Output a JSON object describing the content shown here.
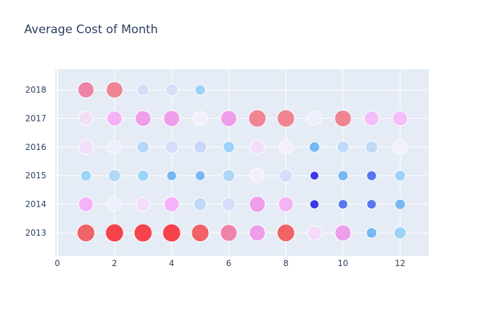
{
  "chart_data": {
    "type": "scatter",
    "title": "Average Cost of Month",
    "xlabel": "",
    "ylabel": "",
    "xlim": [
      0,
      13
    ],
    "x_ticks": [
      0,
      2,
      4,
      6,
      8,
      10,
      12
    ],
    "y_categories": [
      "2013",
      "2014",
      "2015",
      "2016",
      "2017",
      "2018"
    ],
    "grid": true,
    "legend": "none",
    "series": [
      {
        "name": "2013",
        "x": [
          1,
          2,
          3,
          4,
          5,
          6,
          7,
          8,
          9,
          10,
          11,
          12
        ],
        "values": [
          95,
          100,
          100,
          100,
          92,
          82,
          72,
          92,
          50,
          72,
          18,
          30
        ],
        "colors": [
          "#f14b4e",
          "#f8262e",
          "#f8262e",
          "#f8262e",
          "#f14b4e",
          "#ef7199",
          "#f08fe7",
          "#f14b4e",
          "#f6d7f9",
          "#f08fe7",
          "#62aff2",
          "#8dcff8"
        ]
      },
      {
        "name": "2014",
        "x": [
          1,
          2,
          3,
          4,
          5,
          6,
          7,
          8,
          9,
          10,
          11,
          12
        ],
        "values": [
          55,
          45,
          48,
          60,
          35,
          40,
          70,
          58,
          10,
          12,
          12,
          18
        ],
        "colors": [
          "#f6a8f7",
          "#eceffb",
          "#f3dcf8",
          "#f6a8f7",
          "#b9d7f7",
          "#d5d9f9",
          "#f08fe7",
          "#f6a8f7",
          "#1b1ae6",
          "#3d61ea",
          "#3d61ea",
          "#62aff2"
        ]
      },
      {
        "name": "2015",
        "x": [
          1,
          2,
          3,
          4,
          5,
          6,
          7,
          8,
          9,
          10,
          11,
          12
        ],
        "values": [
          20,
          30,
          22,
          14,
          14,
          30,
          48,
          38,
          8,
          16,
          14,
          20
        ],
        "colors": [
          "#8dcff8",
          "#a7d4f6",
          "#8dcff8",
          "#62aff2",
          "#62aff2",
          "#a7d4f6",
          "#f6eff9",
          "#d5d9f9",
          "#1b1ae6",
          "#62aff2",
          "#3d61ea",
          "#8dcff8"
        ]
      },
      {
        "name": "2016",
        "x": [
          1,
          2,
          3,
          4,
          5,
          6,
          7,
          8,
          9,
          10,
          11,
          12
        ],
        "values": [
          52,
          45,
          28,
          38,
          35,
          25,
          52,
          45,
          18,
          30,
          32,
          50
        ],
        "colors": [
          "#f3dcf8",
          "#eceffb",
          "#a7d4f6",
          "#d5d9f9",
          "#c5d2f9",
          "#8dcff8",
          "#f3dcf8",
          "#f6eff9",
          "#62aff2",
          "#b9d7f7",
          "#b9d7f7",
          "#f6eff9"
        ]
      },
      {
        "name": "2017",
        "x": [
          1,
          2,
          3,
          4,
          5,
          6,
          7,
          8,
          9,
          10,
          11,
          12
        ],
        "values": [
          50,
          60,
          68,
          72,
          48,
          72,
          90,
          90,
          45,
          80,
          55,
          58
        ],
        "colors": [
          "#f3dcf8",
          "#f6a8f7",
          "#f08fe7",
          "#f08fe7",
          "#f6eff9",
          "#f08fe7",
          "#f17280",
          "#f17280",
          "#eceffb",
          "#f17280",
          "#f6b6f9",
          "#f6b6f9"
        ]
      },
      {
        "name": "2018",
        "x": [
          1,
          2,
          3,
          4,
          5
        ],
        "values": [
          72,
          78,
          30,
          32,
          18
        ],
        "colors": [
          "#ef7199",
          "#f17280",
          "#d5d9f9",
          "#d5d9f9",
          "#8dcff8"
        ]
      }
    ]
  }
}
